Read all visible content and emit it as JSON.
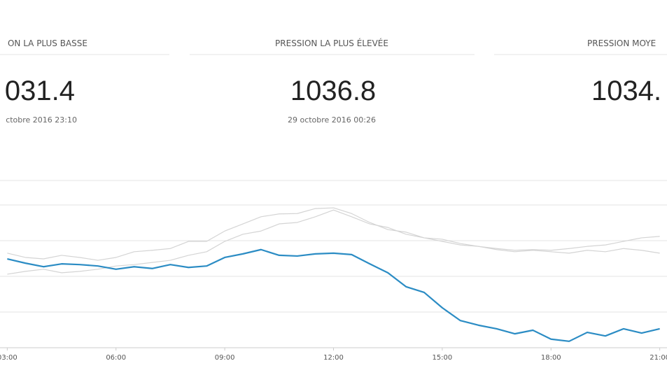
{
  "stats": [
    {
      "label": "ON LA PLUS BASSE",
      "value": "031.4",
      "date": "ctobre 2016 23:10"
    },
    {
      "label": "PRESSION LA PLUS ÉLEVÉE",
      "value": "1036.8",
      "date": "29 octobre 2016 00:26"
    },
    {
      "label": "PRESSION MOYE",
      "value": "1034."
    }
  ],
  "chart_data": {
    "type": "line",
    "x": [
      3,
      3.5,
      4,
      4.5,
      5,
      5.5,
      6,
      6.5,
      7,
      7.5,
      8,
      8.5,
      9,
      9.5,
      10,
      10.5,
      11,
      11.5,
      12,
      12.5,
      13,
      13.5,
      14,
      14.5,
      15,
      15.5,
      16,
      16.5,
      17,
      17.5,
      18,
      18.5,
      19,
      19.5,
      20,
      20.5,
      21
    ],
    "xlim": [
      2.8,
      21.2
    ],
    "xticks": [
      {
        "value": 3,
        "label": "03:00"
      },
      {
        "value": 6,
        "label": "06:00"
      },
      {
        "value": 9,
        "label": "09:00"
      },
      {
        "value": 12,
        "label": "12:00"
      },
      {
        "value": 15,
        "label": "15:00"
      },
      {
        "value": 18,
        "label": "18:00"
      },
      {
        "value": 21,
        "label": "21:00"
      }
    ],
    "ylim": [
      1032,
      1037
    ],
    "grid_lines": [
      1033,
      1034,
      1035,
      1036
    ],
    "series": [
      {
        "color": "#d4d4d4",
        "values": [
          1034.65,
          1034.53,
          1034.49,
          1034.59,
          1034.53,
          1034.45,
          1034.53,
          1034.69,
          1034.73,
          1034.78,
          1034.98,
          1034.98,
          1035.27,
          1035.47,
          1035.67,
          1035.75,
          1035.76,
          1035.9,
          1035.92,
          1035.76,
          1035.51,
          1035.31,
          1035.24,
          1035.08,
          1034.98,
          1034.88,
          1034.84,
          1034.78,
          1034.73,
          1034.75,
          1034.73,
          1034.78,
          1034.84,
          1034.88,
          1034.98,
          1035.08,
          1035.12
        ]
      },
      {
        "color": "#d4d4d4",
        "values": [
          1034.06,
          1034.14,
          1034.2,
          1034.1,
          1034.14,
          1034.2,
          1034.29,
          1034.33,
          1034.39,
          1034.45,
          1034.59,
          1034.69,
          1034.98,
          1035.18,
          1035.27,
          1035.47,
          1035.51,
          1035.67,
          1035.86,
          1035.67,
          1035.47,
          1035.37,
          1035.18,
          1035.08,
          1035.04,
          1034.92,
          1034.84,
          1034.75,
          1034.69,
          1034.73,
          1034.69,
          1034.65,
          1034.73,
          1034.69,
          1034.78,
          1034.73,
          1034.65
        ]
      },
      {
        "color": "#2b8cc4",
        "values": [
          1034.49,
          1034.37,
          1034.27,
          1034.35,
          1034.33,
          1034.29,
          1034.2,
          1034.27,
          1034.22,
          1034.33,
          1034.25,
          1034.29,
          1034.53,
          1034.63,
          1034.75,
          1034.59,
          1034.57,
          1034.63,
          1034.65,
          1034.61,
          1034.35,
          1034.1,
          1033.71,
          1033.55,
          1033.12,
          1032.76,
          1032.63,
          1032.53,
          1032.39,
          1032.49,
          1032.24,
          1032.18,
          1032.43,
          1032.33,
          1032.53,
          1032.41,
          1032.53
        ]
      }
    ]
  }
}
